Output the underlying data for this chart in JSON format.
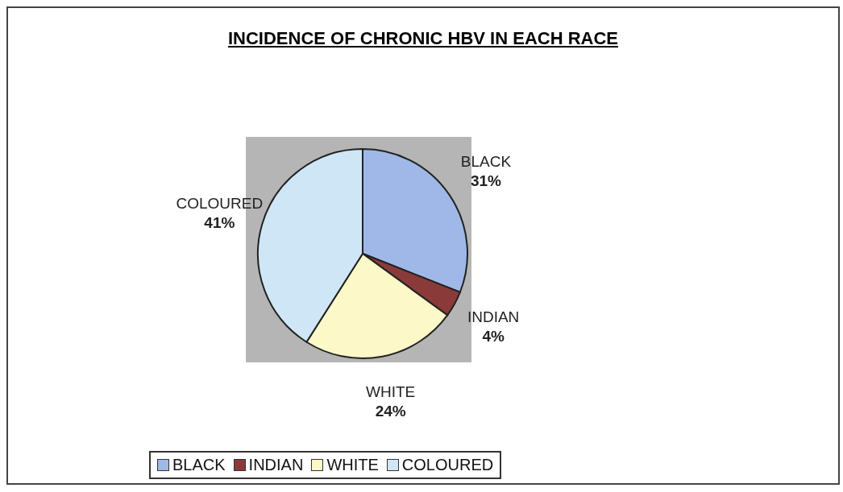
{
  "chart_data": {
    "type": "pie",
    "title": "INCIDENCE OF CHRONIC HBV IN EACH RACE",
    "categories": [
      "BLACK",
      "INDIAN",
      "WHITE",
      "COLOURED"
    ],
    "values": [
      31,
      4,
      24,
      41
    ],
    "value_labels": [
      "31%",
      "4%",
      "24%",
      "41%"
    ],
    "colors": [
      "#9fb8e8",
      "#8b3a3a",
      "#fdf8c8",
      "#cfe6f6"
    ],
    "legend": "bottom"
  }
}
